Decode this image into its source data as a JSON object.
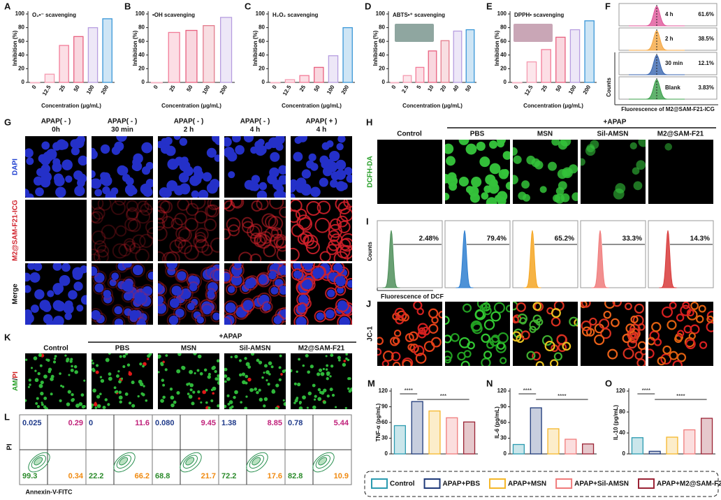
{
  "chart_data": [
    {
      "type": "bar",
      "label": "A",
      "annotation": "O₂•⁻ scavenging",
      "ylabel": "Inhibition (%)",
      "xlabel": "Concentration (μg/mL)",
      "categories": [
        "0",
        "12.5",
        "25",
        "50",
        "100",
        "200"
      ],
      "values": [
        0,
        12,
        54,
        67,
        80,
        93
      ],
      "colors": [
        "#f7b6c6",
        "#f59ab0",
        "#f27b98",
        "#e8607f",
        "#b79ee0",
        "#3a97d8"
      ],
      "ylim": [
        0,
        100
      ],
      "yticks": [
        0,
        20,
        40,
        60,
        80,
        100
      ]
    },
    {
      "type": "bar",
      "label": "B",
      "annotation": "•OH scavenging",
      "ylabel": "Inhibition (%)",
      "xlabel": "Concentration (μg/mL)",
      "categories": [
        "0",
        "25",
        "50",
        "100",
        "200"
      ],
      "values": [
        0,
        73,
        76,
        83,
        95
      ],
      "colors": [
        "#f7b6c6",
        "#f27b98",
        "#e8607f",
        "#e37b8c",
        "#b79ee0"
      ],
      "ylim": [
        0,
        100
      ],
      "yticks": [
        0,
        20,
        40,
        60,
        80,
        100
      ]
    },
    {
      "type": "bar",
      "label": "C",
      "annotation": "H₂O₂ scavenging",
      "ylabel": "Inhibition (%)",
      "xlabel": "Concentration (μg/mL)",
      "categories": [
        "0",
        "12.5",
        "25",
        "50",
        "100",
        "200"
      ],
      "values": [
        0,
        4,
        10,
        22,
        39,
        80
      ],
      "colors": [
        "#f7b6c6",
        "#f59ab0",
        "#f27b98",
        "#e8607f",
        "#b79ee0",
        "#3a97d8"
      ],
      "ylim": [
        0,
        100
      ],
      "yticks": [
        0,
        20,
        40,
        60,
        80,
        100
      ]
    },
    {
      "type": "bar",
      "label": "D",
      "annotation": "ABTS•⁺ scavenging",
      "ylabel": "Inhibition (%)",
      "xlabel": "Concentration (μg/mL)",
      "categories": [
        "0",
        "2.5",
        "5",
        "10",
        "20",
        "40",
        "50"
      ],
      "values": [
        0,
        10,
        22,
        46,
        61,
        75,
        77
      ],
      "colors": [
        "#f7b6c6",
        "#f59ab0",
        "#f27b98",
        "#e8607f",
        "#e37b8c",
        "#b79ee0",
        "#3a97d8"
      ],
      "ylim": [
        0,
        100
      ],
      "yticks": [
        0,
        20,
        40,
        60,
        80,
        100
      ]
    },
    {
      "type": "bar",
      "label": "E",
      "annotation": "DPPH• scavenging",
      "ylabel": "Inhibition (%)",
      "xlabel": "Concentration (μg/mL)",
      "categories": [
        "0",
        "12.5",
        "25",
        "50",
        "100",
        "200"
      ],
      "values": [
        0,
        30,
        48,
        66,
        77,
        90
      ],
      "colors": [
        "#f7b6c6",
        "#f59ab0",
        "#f27b98",
        "#e8607f",
        "#b79ee0",
        "#3a97d8"
      ],
      "ylim": [
        0,
        100
      ],
      "yticks": [
        0,
        20,
        40,
        60,
        80,
        100
      ]
    },
    {
      "type": "bar",
      "label": "M",
      "ylabel": "TNF-α (pg/mL)",
      "annotations": [
        "****",
        "***"
      ],
      "values": [
        54,
        100,
        82,
        69,
        61
      ],
      "colors": [
        "#2b9bb0",
        "#1f3a7a",
        "#f5b72a",
        "#f07b7b",
        "#9b2335"
      ],
      "ylim": [
        0,
        120
      ],
      "yticks": [
        0,
        30,
        60,
        90,
        120
      ]
    },
    {
      "type": "bar",
      "label": "N",
      "ylabel": "IL-6 (pg/mL)",
      "annotations": [
        "****",
        "****"
      ],
      "values": [
        18,
        88,
        48,
        28,
        19
      ],
      "colors": [
        "#2b9bb0",
        "#1f3a7a",
        "#f5b72a",
        "#f07b7b",
        "#9b2335"
      ],
      "ylim": [
        0,
        120
      ],
      "yticks": [
        0,
        30,
        60,
        90,
        120
      ]
    },
    {
      "type": "bar",
      "label": "O",
      "ylabel": "IL-10 (pg/mL)",
      "annotations": [
        "****",
        "****"
      ],
      "values": [
        31,
        5,
        32,
        46,
        68
      ],
      "colors": [
        "#2b9bb0",
        "#1f3a7a",
        "#f5b72a",
        "#f07b7b",
        "#9b2335"
      ],
      "ylim": [
        0,
        120
      ],
      "yticks": [
        0,
        40,
        80,
        120
      ]
    }
  ],
  "panels": {
    "F": {
      "label": "F",
      "ylabel": "Counts",
      "xlabel": "Fluorescence of M2@SAM-F21-ICG",
      "items": [
        {
          "name": "4 h",
          "value": "61.6%",
          "color": "#e0569a"
        },
        {
          "name": "2 h",
          "value": "38.5%",
          "color": "#f5a742"
        },
        {
          "name": "30 min",
          "value": "12.1%",
          "color": "#3a66b0"
        },
        {
          "name": "Blank",
          "value": "3.83%",
          "color": "#3aa04a"
        }
      ]
    },
    "G": {
      "label": "G",
      "columns": [
        [
          "APAP( - )",
          "0h"
        ],
        [
          "APAP( - )",
          "30 min"
        ],
        [
          "APAP( - )",
          "2 h"
        ],
        [
          "APAP( - )",
          "4 h"
        ],
        [
          "APAP( + )",
          "4 h"
        ]
      ],
      "rows": [
        "DAPI",
        "M2@SAM-F21-ICG",
        "Merge"
      ]
    },
    "H": {
      "label": "H",
      "group": "+APAP",
      "columns": [
        "Control",
        "PBS",
        "MSN",
        "Sil-AMSN",
        "M2@SAM-F21"
      ],
      "row": "DCFH-DA"
    },
    "I": {
      "label": "I",
      "ylabel": "Counts",
      "xlabel": "Fluorescence of DCF",
      "values": [
        "2.48%",
        "79.4%",
        "65.2%",
        "33.3%",
        "14.3%"
      ],
      "colors": [
        "#4f8f5a",
        "#2f7fd0",
        "#f5a623",
        "#f07b7b",
        "#d83a3a"
      ]
    },
    "J": {
      "label": "J",
      "row": "JC-1"
    },
    "K": {
      "label": "K",
      "group": "+APAP",
      "columns": [
        "Control",
        "PBS",
        "MSN",
        "Sil-AMSN",
        "M2@SAM-F21"
      ],
      "row": [
        "AM",
        "/",
        "PI"
      ]
    },
    "L": {
      "label": "L",
      "ylabel": "PI",
      "xlabel": "Annexin-V-FITC",
      "quadrants": [
        [
          "0.025",
          "0.29",
          "99.3",
          "0.34"
        ],
        [
          "0",
          "11.6",
          "22.2",
          "66.2"
        ],
        [
          "0.080",
          "9.45",
          "68.8",
          "21.7"
        ],
        [
          "1.38",
          "8.85",
          "72.2",
          "17.6"
        ],
        [
          "0.78",
          "5.44",
          "82.8",
          "10.9"
        ]
      ]
    },
    "legend": [
      {
        "name": "Control",
        "color": "#2b9bb0"
      },
      {
        "name": "APAP+PBS",
        "color": "#1f3a7a"
      },
      {
        "name": "APAP+MSN",
        "color": "#f5b72a"
      },
      {
        "name": "APAP+Sil-AMSN",
        "color": "#f07b7b"
      },
      {
        "name": "APAP+M2@SAM-F21",
        "color": "#9b2335"
      }
    ]
  }
}
